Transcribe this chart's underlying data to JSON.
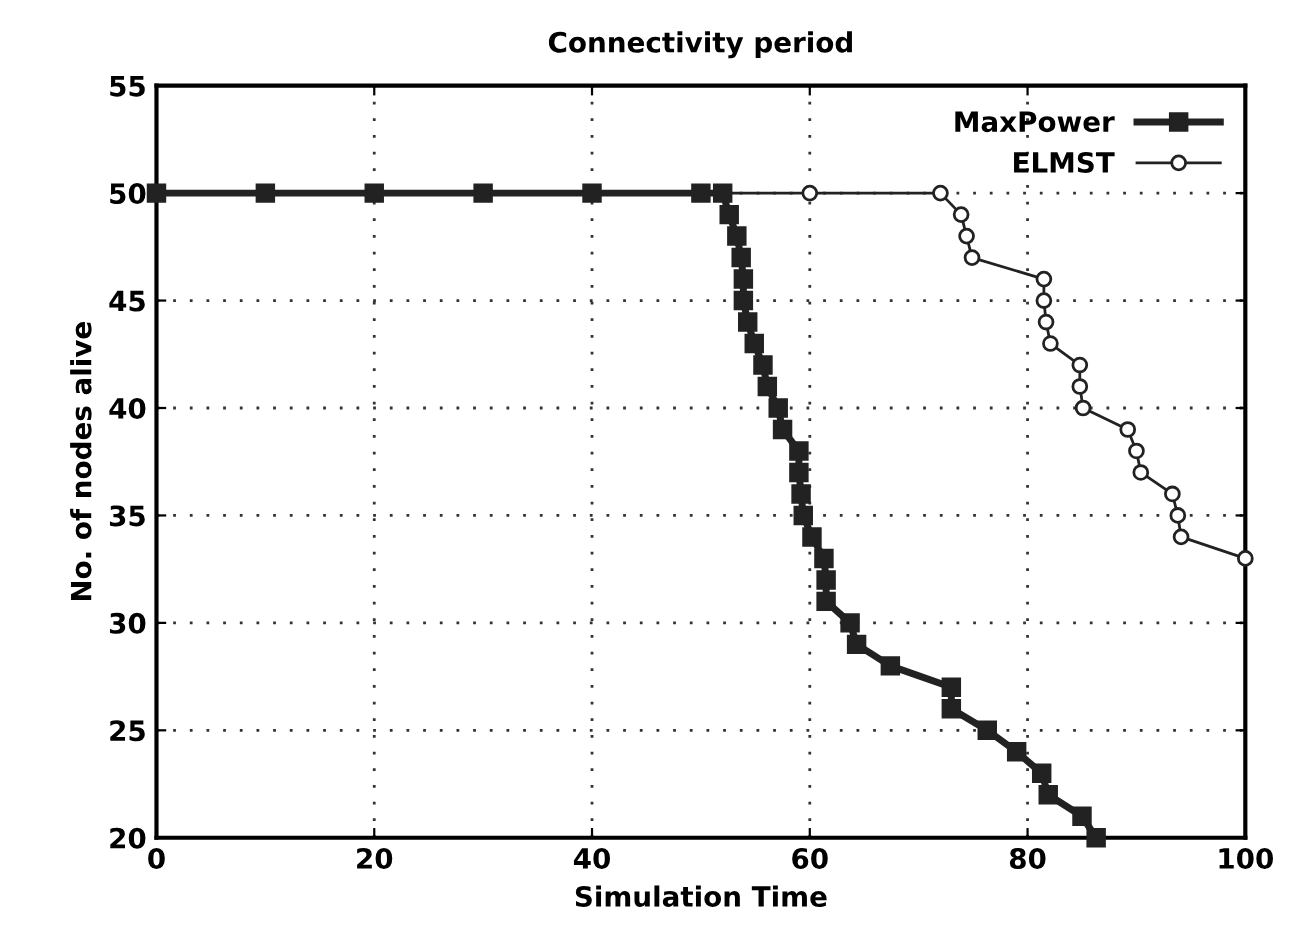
{
  "chart_data": {
    "type": "line",
    "title": "Connectivity period",
    "xlabel": "Simulation Time",
    "ylabel": "No. of nodes alive",
    "xlim": [
      0,
      100
    ],
    "xticks": [
      0,
      20,
      40,
      60,
      80,
      100
    ],
    "ylim": [
      20,
      55
    ],
    "yticks": [
      20,
      25,
      30,
      35,
      40,
      45,
      50,
      55
    ],
    "grid": true,
    "legend": "top right",
    "series": [
      {
        "name": "MaxPower",
        "color": "#222222",
        "marker": "square",
        "line_style": "solid",
        "x": [
          0,
          10,
          20,
          30,
          40,
          50,
          52,
          52.6,
          53.3,
          53.7,
          53.9,
          53.9,
          54.3,
          54.9,
          55.7,
          56.1,
          57.1,
          57.5,
          59,
          59,
          59.2,
          59.4,
          60.2,
          61.3,
          61.5,
          61.5,
          63.7,
          64.3,
          67.4,
          73,
          73,
          76.3,
          79,
          81.3,
          81.9,
          85,
          86.3
        ],
        "values": [
          50,
          50,
          50,
          50,
          50,
          50,
          50,
          49,
          48,
          47,
          46,
          45,
          44,
          43,
          42,
          41,
          40,
          39,
          38,
          37,
          36,
          35,
          34,
          33,
          32,
          31,
          30,
          29,
          28,
          27,
          26,
          25,
          24,
          23,
          22,
          21,
          20
        ]
      },
      {
        "name": "ELMST",
        "color": "#222222",
        "marker": "circle",
        "line_style": "solid",
        "x": [
          0,
          52,
          60,
          72,
          73.9,
          74.4,
          74.9,
          81.5,
          81.5,
          81.7,
          82.1,
          84.8,
          84.8,
          85.1,
          89.2,
          90,
          90.4,
          93.3,
          93.8,
          94.1,
          100
        ],
        "values": [
          50,
          50,
          50,
          50,
          49,
          48,
          47,
          46,
          45,
          44,
          43,
          42,
          41,
          40,
          39,
          38,
          37,
          36,
          35,
          34,
          33
        ]
      }
    ]
  }
}
